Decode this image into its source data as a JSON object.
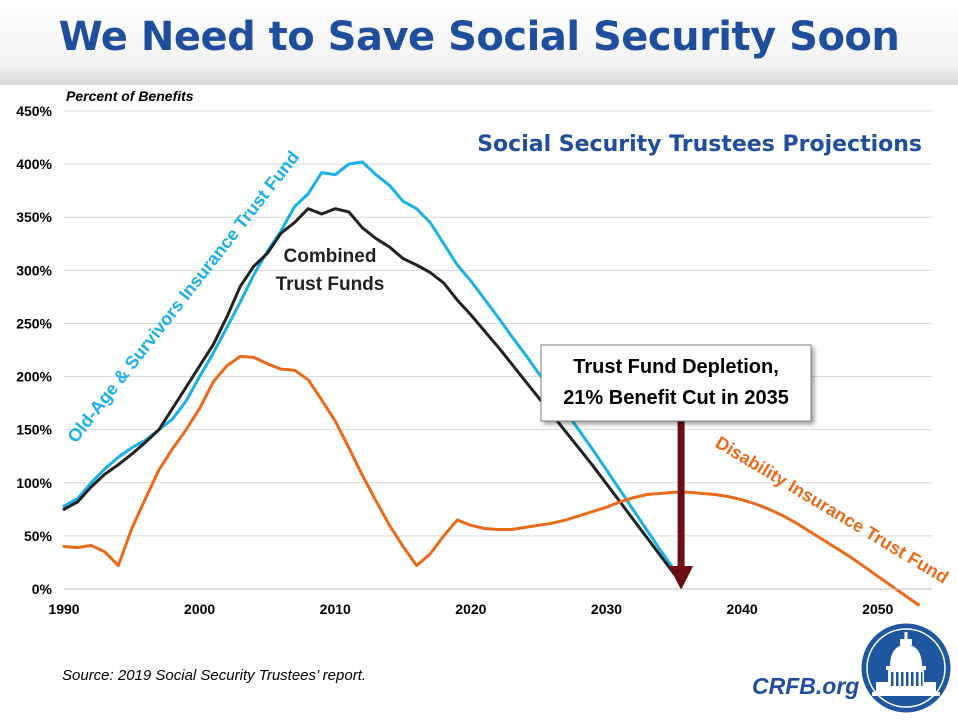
{
  "page": {
    "title": "We Need to Save Social Security Soon",
    "source": "Source: 2019 Social Security Trustees’ report.",
    "brand": "CRFB.org"
  },
  "chart_data": {
    "type": "line",
    "title": "Social Security Trustees Projections",
    "ylabel": "Percent of Benefits",
    "xlabel": "",
    "xlim": [
      1990,
      2054
    ],
    "ylim": [
      0,
      450
    ],
    "x_ticks": [
      1990,
      2000,
      2010,
      2020,
      2030,
      2040,
      2050
    ],
    "y_ticks": [
      0,
      50,
      100,
      150,
      200,
      250,
      300,
      350,
      400,
      450
    ],
    "y_tick_labels": [
      "0%",
      "50%",
      "100%",
      "150%",
      "200%",
      "250%",
      "300%",
      "350%",
      "400%",
      "450%"
    ],
    "grid": "horizontal",
    "colors": {
      "oasi": "#1ab0e8",
      "combined": "#222222",
      "di": "#ea6a1a",
      "arrow": "#6b0f14",
      "title": "#1f4e9c"
    },
    "series": [
      {
        "key": "oasi",
        "name": "Old-Age & Survivors Insurance Trust Fund",
        "x": [
          1990,
          1991,
          1992,
          1993,
          1994,
          1995,
          1996,
          1997,
          1998,
          1999,
          2000,
          2001,
          2002,
          2003,
          2004,
          2005,
          2006,
          2007,
          2008,
          2009,
          2010,
          2011,
          2012,
          2013,
          2014,
          2015,
          2016,
          2017,
          2018,
          2019,
          2020,
          2021,
          2022,
          2023,
          2024,
          2025,
          2026,
          2027,
          2028,
          2029,
          2030,
          2031,
          2032,
          2033,
          2034,
          2035
        ],
        "y": [
          78,
          85,
          100,
          113,
          124,
          133,
          140,
          150,
          160,
          177,
          200,
          222,
          246,
          270,
          296,
          318,
          337,
          360,
          372,
          392,
          390,
          400,
          402,
          390,
          380,
          365,
          358,
          345,
          325,
          305,
          290,
          273,
          256,
          238,
          221,
          203,
          185,
          167,
          149,
          131,
          112,
          93,
          74,
          55,
          36,
          18
        ]
      },
      {
        "key": "combined",
        "name": "Combined Trust Funds",
        "x": [
          1990,
          1991,
          1992,
          1993,
          1994,
          1995,
          1996,
          1997,
          1998,
          1999,
          2000,
          2001,
          2002,
          2003,
          2004,
          2005,
          2006,
          2007,
          2008,
          2009,
          2010,
          2011,
          2012,
          2013,
          2014,
          2015,
          2016,
          2017,
          2018,
          2019,
          2020,
          2021,
          2022,
          2023,
          2024,
          2025,
          2026,
          2027,
          2028,
          2029,
          2030,
          2031,
          2032,
          2033,
          2034,
          2035
        ],
        "y": [
          75,
          82,
          96,
          108,
          117,
          127,
          138,
          150,
          170,
          190,
          210,
          230,
          256,
          285,
          304,
          316,
          335,
          345,
          358,
          353,
          358,
          355,
          340,
          330,
          322,
          311,
          305,
          298,
          288,
          272,
          258,
          243,
          228,
          212,
          196,
          180,
          164,
          148,
          132,
          116,
          99,
          82,
          65,
          48,
          31,
          14
        ]
      },
      {
        "key": "di",
        "name": "Disability Insurance Trust Fund",
        "x": [
          1990,
          1991,
          1992,
          1993,
          1994,
          1995,
          1996,
          1997,
          1998,
          1999,
          2000,
          2001,
          2002,
          2003,
          2004,
          2005,
          2006,
          2007,
          2008,
          2009,
          2010,
          2011,
          2012,
          2013,
          2014,
          2015,
          2016,
          2017,
          2018,
          2019,
          2020,
          2021,
          2022,
          2023,
          2024,
          2025,
          2026,
          2027,
          2028,
          2029,
          2030,
          2031,
          2032,
          2033,
          2034,
          2035,
          2036,
          2037,
          2038,
          2039,
          2040,
          2041,
          2042,
          2043,
          2044,
          2045,
          2046,
          2047,
          2048,
          2049,
          2050,
          2051,
          2052,
          2053
        ],
        "y": [
          40,
          39,
          41,
          35,
          22,
          57,
          85,
          112,
          132,
          150,
          170,
          195,
          210,
          219,
          218,
          212,
          207,
          206,
          197,
          178,
          158,
          133,
          107,
          83,
          60,
          40,
          22,
          33,
          50,
          65,
          60,
          57,
          56,
          56,
          58,
          60,
          62,
          65,
          69,
          73,
          77,
          82,
          86,
          89,
          90,
          91,
          91,
          90,
          89,
          87,
          84,
          80,
          75,
          69,
          62,
          54,
          46,
          38,
          30,
          21,
          12,
          3,
          -6,
          -15
        ]
      }
    ],
    "labels": {
      "combined_line1": "Combined",
      "combined_line2": "Trust Funds"
    },
    "annotation": {
      "line1": "Trust Fund Depletion,",
      "line2": "21% Benefit Cut in 2035",
      "arrow_x": 2035.5
    }
  }
}
